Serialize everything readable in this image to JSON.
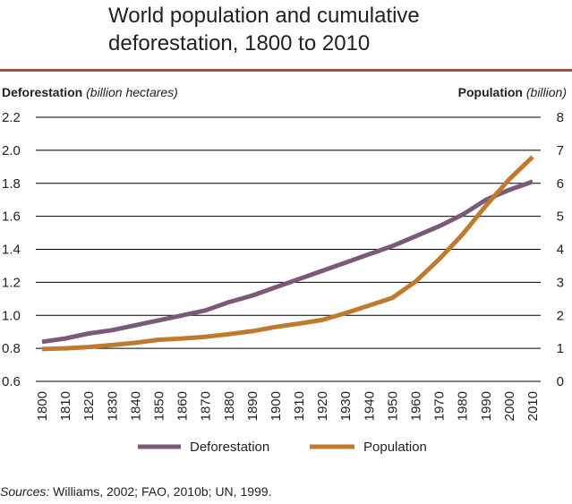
{
  "title_line1": "World population and cumulative",
  "title_line2": "deforestation, 1800 to 2010",
  "left_axis": {
    "label": "Deforestation",
    "unit": "(billion hectares)"
  },
  "right_axis": {
    "label": "Population",
    "unit": "(billion)"
  },
  "sources": {
    "lead": "Sources:",
    "text": "Williams, 2002; FAO, 2010b; UN, 1999."
  },
  "colors": {
    "deforestation": "#7a5a78",
    "population": "#c07a2e",
    "rule": "#b24a45",
    "grid": "#000000"
  },
  "chart_data": {
    "type": "line",
    "title": "World population and cumulative deforestation, 1800 to 2010",
    "x": [
      1800,
      1810,
      1820,
      1830,
      1840,
      1850,
      1860,
      1870,
      1880,
      1890,
      1900,
      1910,
      1920,
      1930,
      1940,
      1950,
      1960,
      1970,
      1980,
      1990,
      2000,
      2010
    ],
    "x_tick_labels": [
      "1800",
      "1810",
      "1820",
      "1830",
      "1840",
      "1850",
      "1860",
      "1870",
      "1880",
      "1890",
      "1900",
      "1910",
      "1920",
      "1930",
      "1940",
      "1950",
      "1960",
      "1970",
      "1980",
      "1990",
      "2000",
      "2010"
    ],
    "left_y": {
      "label": "Deforestation (billion hectares)",
      "lim": [
        0.6,
        2.2
      ],
      "ticks": [
        "0.6",
        "0.8",
        "1.0",
        "1.2",
        "1.4",
        "1.6",
        "1.8",
        "2.0",
        "2.2"
      ]
    },
    "right_y": {
      "label": "Population (billion)",
      "lim": [
        0,
        8
      ],
      "ticks": [
        "0",
        "1",
        "2",
        "3",
        "4",
        "5",
        "6",
        "7",
        "8"
      ]
    },
    "grid": true,
    "legend_position": "bottom",
    "series": [
      {
        "name": "Deforestation",
        "axis": "left",
        "values": [
          0.84,
          0.86,
          0.89,
          0.91,
          0.94,
          0.97,
          1.0,
          1.03,
          1.08,
          1.12,
          1.17,
          1.22,
          1.27,
          1.32,
          1.37,
          1.42,
          1.48,
          1.54,
          1.61,
          1.7,
          1.76,
          1.81
        ]
      },
      {
        "name": "Population",
        "axis": "right",
        "values": [
          0.98,
          1.0,
          1.04,
          1.1,
          1.17,
          1.26,
          1.3,
          1.35,
          1.43,
          1.52,
          1.65,
          1.75,
          1.86,
          2.07,
          2.3,
          2.53,
          3.03,
          3.7,
          4.45,
          5.32,
          6.12,
          6.8
        ]
      }
    ]
  }
}
